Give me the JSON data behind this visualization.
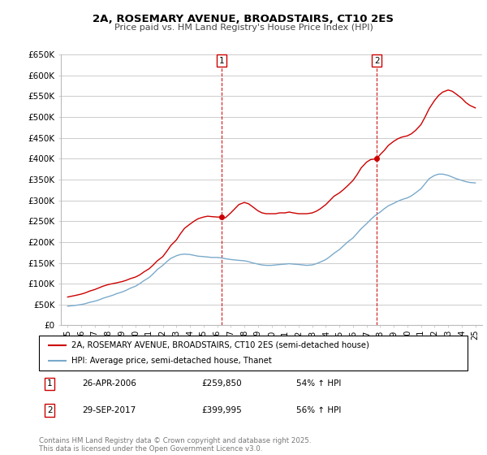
{
  "title": "2A, ROSEMARY AVENUE, BROADSTAIRS, CT10 2ES",
  "subtitle": "Price paid vs. HM Land Registry's House Price Index (HPI)",
  "ylim": [
    0,
    650000
  ],
  "yticks": [
    0,
    50000,
    100000,
    150000,
    200000,
    250000,
    300000,
    350000,
    400000,
    450000,
    500000,
    550000,
    600000,
    650000
  ],
  "ytick_labels": [
    "£0",
    "£50K",
    "£100K",
    "£150K",
    "£200K",
    "£250K",
    "£300K",
    "£350K",
    "£400K",
    "£450K",
    "£500K",
    "£550K",
    "£600K",
    "£650K"
  ],
  "xlim": [
    1994.5,
    2025.5
  ],
  "background_color": "#ffffff",
  "grid_color": "#cccccc",
  "red_color": "#cc0000",
  "blue_color": "#7aaacb",
  "sale1_year": 2006.32,
  "sale1_price": 259850,
  "sale1_label": "1",
  "sale1_date": "26-APR-2006",
  "sale1_price_str": "£259,850",
  "sale1_pct": "54% ↑ HPI",
  "sale2_year": 2017.75,
  "sale2_price": 399995,
  "sale2_label": "2",
  "sale2_date": "29-SEP-2017",
  "sale2_price_str": "£399,995",
  "sale2_pct": "56% ↑ HPI",
  "legend_line1": "2A, ROSEMARY AVENUE, BROADSTAIRS, CT10 2ES (semi-detached house)",
  "legend_line2": "HPI: Average price, semi-detached house, Thanet",
  "copyright_text": "Contains HM Land Registry data © Crown copyright and database right 2025.\nThis data is licensed under the Open Government Licence v3.0.",
  "red_years": [
    1995.0,
    1995.3,
    1995.6,
    1996.0,
    1996.3,
    1996.6,
    1997.0,
    1997.3,
    1997.6,
    1998.0,
    1998.3,
    1998.6,
    1999.0,
    1999.3,
    1999.6,
    2000.0,
    2000.3,
    2000.6,
    2001.0,
    2001.3,
    2001.6,
    2002.0,
    2002.3,
    2002.6,
    2003.0,
    2003.3,
    2003.6,
    2004.0,
    2004.3,
    2004.6,
    2005.0,
    2005.3,
    2005.6,
    2006.0,
    2006.32,
    2006.6,
    2007.0,
    2007.3,
    2007.6,
    2008.0,
    2008.3,
    2008.6,
    2009.0,
    2009.3,
    2009.6,
    2010.0,
    2010.3,
    2010.6,
    2011.0,
    2011.3,
    2011.6,
    2012.0,
    2012.3,
    2012.6,
    2013.0,
    2013.3,
    2013.6,
    2014.0,
    2014.3,
    2014.6,
    2015.0,
    2015.3,
    2015.6,
    2016.0,
    2016.3,
    2016.6,
    2017.0,
    2017.3,
    2017.75,
    2018.0,
    2018.3,
    2018.6,
    2019.0,
    2019.3,
    2019.6,
    2020.0,
    2020.3,
    2020.6,
    2021.0,
    2021.3,
    2021.6,
    2022.0,
    2022.3,
    2022.6,
    2023.0,
    2023.3,
    2023.6,
    2024.0,
    2024.3,
    2024.6,
    2025.0
  ],
  "red_values": [
    68000,
    70000,
    72000,
    75000,
    78000,
    82000,
    86000,
    90000,
    94000,
    98000,
    100000,
    102000,
    105000,
    108000,
    112000,
    116000,
    121000,
    128000,
    136000,
    145000,
    155000,
    165000,
    178000,
    192000,
    205000,
    220000,
    233000,
    243000,
    250000,
    256000,
    260000,
    262000,
    261000,
    260000,
    259850,
    258000,
    270000,
    280000,
    290000,
    295000,
    292000,
    285000,
    275000,
    270000,
    268000,
    268000,
    268000,
    270000,
    270000,
    272000,
    270000,
    268000,
    268000,
    268000,
    270000,
    274000,
    280000,
    290000,
    300000,
    310000,
    318000,
    326000,
    335000,
    348000,
    362000,
    378000,
    392000,
    398000,
    399995,
    410000,
    420000,
    432000,
    442000,
    448000,
    452000,
    455000,
    460000,
    468000,
    482000,
    500000,
    520000,
    540000,
    552000,
    560000,
    565000,
    562000,
    555000,
    545000,
    535000,
    528000,
    522000
  ],
  "blue_years": [
    1995.0,
    1995.3,
    1995.6,
    1996.0,
    1996.3,
    1996.6,
    1997.0,
    1997.3,
    1997.6,
    1998.0,
    1998.3,
    1998.6,
    1999.0,
    1999.3,
    1999.6,
    2000.0,
    2000.3,
    2000.6,
    2001.0,
    2001.3,
    2001.6,
    2002.0,
    2002.3,
    2002.6,
    2003.0,
    2003.3,
    2003.6,
    2004.0,
    2004.3,
    2004.6,
    2005.0,
    2005.3,
    2005.6,
    2006.0,
    2006.3,
    2006.6,
    2007.0,
    2007.3,
    2007.6,
    2008.0,
    2008.3,
    2008.6,
    2009.0,
    2009.3,
    2009.6,
    2010.0,
    2010.3,
    2010.6,
    2011.0,
    2011.3,
    2011.6,
    2012.0,
    2012.3,
    2012.6,
    2013.0,
    2013.3,
    2013.6,
    2014.0,
    2014.3,
    2014.6,
    2015.0,
    2015.3,
    2015.6,
    2016.0,
    2016.3,
    2016.6,
    2017.0,
    2017.3,
    2017.6,
    2018.0,
    2018.3,
    2018.6,
    2019.0,
    2019.3,
    2019.6,
    2020.0,
    2020.3,
    2020.6,
    2021.0,
    2021.3,
    2021.6,
    2022.0,
    2022.3,
    2022.6,
    2023.0,
    2023.3,
    2023.6,
    2024.0,
    2024.3,
    2024.6,
    2025.0
  ],
  "blue_values": [
    46000,
    47000,
    48000,
    50000,
    52000,
    55000,
    58000,
    61000,
    65000,
    69000,
    72000,
    76000,
    80000,
    84000,
    89000,
    94000,
    100000,
    107000,
    115000,
    124000,
    134000,
    144000,
    153000,
    161000,
    167000,
    170000,
    171000,
    170000,
    168000,
    166000,
    165000,
    164000,
    163000,
    163000,
    162000,
    160000,
    158000,
    157000,
    156000,
    155000,
    153000,
    150000,
    147000,
    145000,
    144000,
    144000,
    145000,
    146000,
    147000,
    148000,
    147000,
    146000,
    145000,
    144000,
    145000,
    148000,
    152000,
    158000,
    165000,
    173000,
    182000,
    191000,
    200000,
    210000,
    221000,
    232000,
    244000,
    254000,
    263000,
    272000,
    280000,
    287000,
    293000,
    298000,
    302000,
    306000,
    311000,
    318000,
    328000,
    340000,
    352000,
    360000,
    363000,
    363000,
    360000,
    356000,
    352000,
    348000,
    345000,
    343000,
    342000
  ]
}
